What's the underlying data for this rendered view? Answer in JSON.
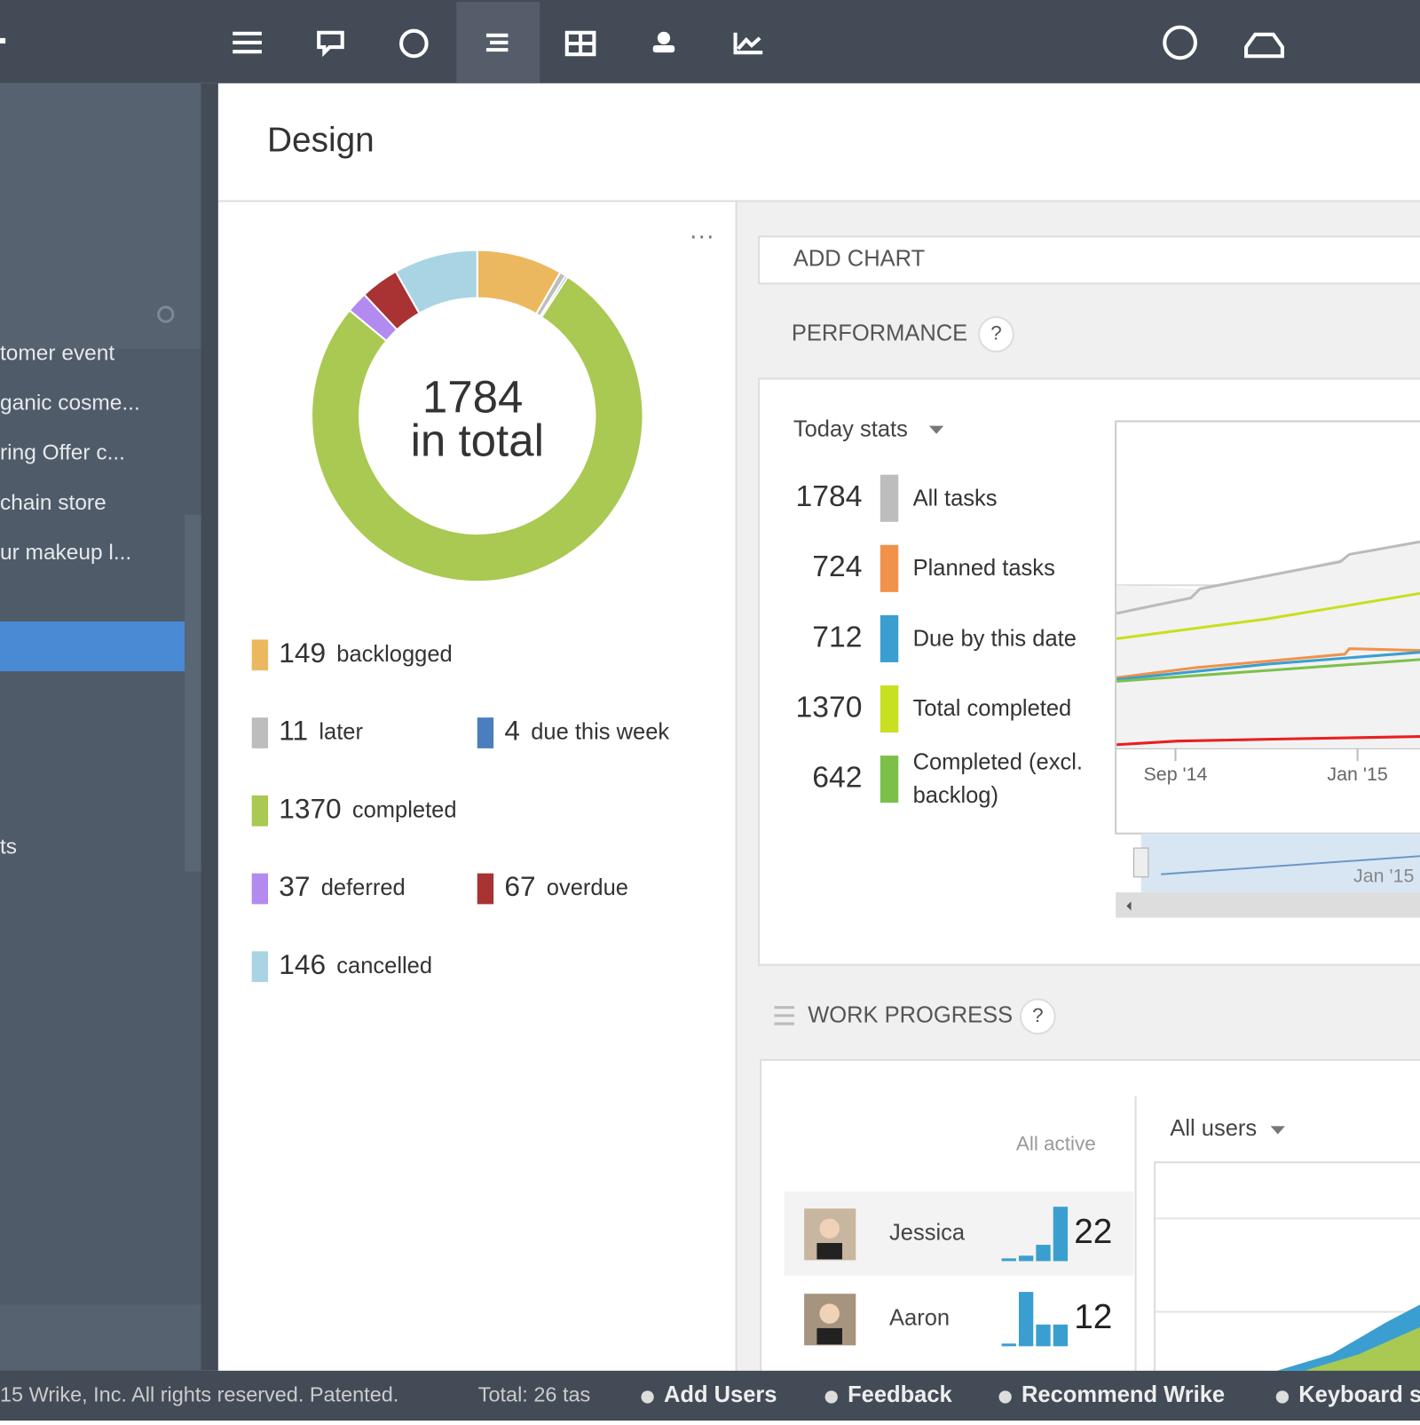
{
  "sidebar": {
    "items": [
      "tomer event",
      "ganic cosme...",
      "ring Offer c...",
      "chain store",
      "ur makeup l...",
      "ts"
    ]
  },
  "header": {
    "title": "Design"
  },
  "donut": {
    "type": "pie",
    "center_value": 1784,
    "center_label": "in total",
    "segments": [
      {
        "label": "backlogged",
        "value": 149,
        "color": "#ecb85f"
      },
      {
        "label": "later",
        "value": 11,
        "color": "#bdbdbd"
      },
      {
        "label": "due this week",
        "value": 4,
        "color": "#4a7ebf"
      },
      {
        "label": "completed",
        "value": 1370,
        "color": "#a9c952"
      },
      {
        "label": "deferred",
        "value": 37,
        "color": "#b38af0"
      },
      {
        "label": "overdue",
        "value": 67,
        "color": "#a93232"
      },
      {
        "label": "cancelled",
        "value": 146,
        "color": "#a9d4e4"
      }
    ]
  },
  "add_chart": "ADD CHART",
  "performance": {
    "title": "PERFORMANCE",
    "help": "?",
    "dropdown": "Today stats",
    "stats": [
      {
        "value": 1784,
        "label": "All tasks",
        "color": "#bdbdbd"
      },
      {
        "value": 724,
        "label": "Planned tasks",
        "color": "#f0924a"
      },
      {
        "value": 712,
        "label": "Due by this date",
        "color": "#3a9fd0"
      },
      {
        "value": 1370,
        "label": "Total completed",
        "color": "#c8e020"
      },
      {
        "value": 642,
        "label": "Completed (excl. backlog)",
        "color": "#7cc04a"
      }
    ],
    "x_labels": [
      "Sep '14",
      "Jan '15"
    ],
    "navigator_label": "Jan '15"
  },
  "work_progress": {
    "title": "WORK PROGRESS",
    "help": "?",
    "filter": "All active",
    "users_dropdown": "All users",
    "users": [
      {
        "name": "Jessica",
        "value": 22,
        "bars": [
          1,
          2,
          6,
          20
        ]
      },
      {
        "name": "Aaron",
        "value": 12,
        "bars": [
          1,
          20,
          8,
          8
        ]
      }
    ]
  },
  "footer": {
    "copyright": "15 Wrike, Inc. All rights reserved. Patented.",
    "total": "Total: 26 tas",
    "links": [
      "Add Users",
      "Feedback",
      "Recommend Wrike",
      "Keyboard s"
    ]
  }
}
